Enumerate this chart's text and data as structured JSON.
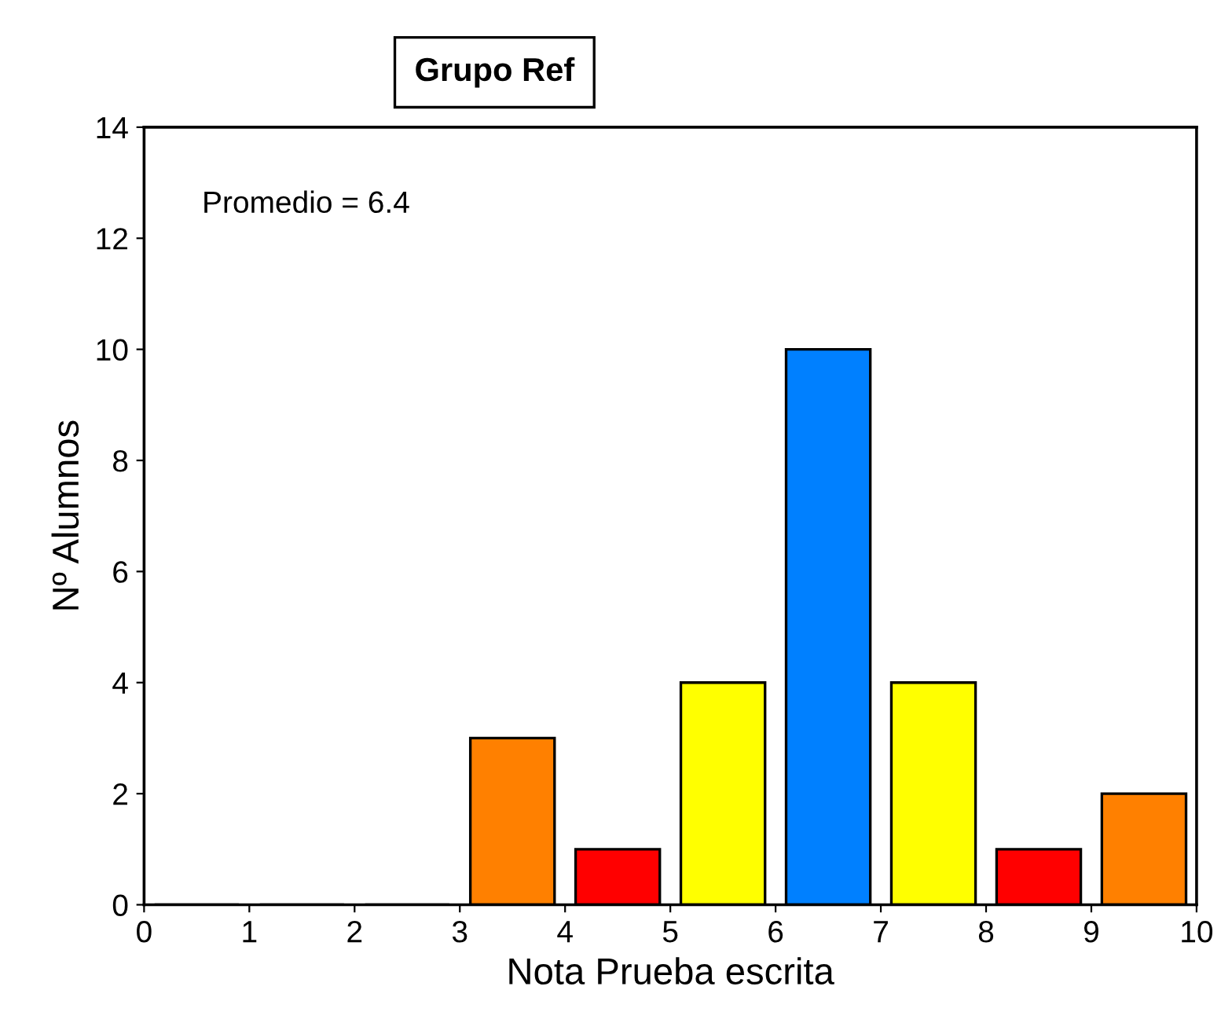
{
  "chart_data": {
    "type": "histogram",
    "title": "Grupo Ref",
    "xlabel": "Nota Prueba escrita",
    "ylabel": "Nº Alumnos",
    "bins": [
      0,
      1,
      2,
      3,
      4,
      5,
      6,
      7,
      8,
      9,
      10
    ],
    "values": [
      0,
      0,
      0,
      3,
      1,
      4,
      10,
      4,
      1,
      2
    ],
    "colors": [
      "#ff8000",
      "#ff8000",
      "#ff8000",
      "#ff8000",
      "#ff0000",
      "#ffff00",
      "#0080ff",
      "#ffff00",
      "#ff0000",
      "#ff8000"
    ],
    "xlim": [
      0,
      10
    ],
    "xticks": [
      0,
      1,
      2,
      3,
      4,
      5,
      6,
      7,
      8,
      9,
      10
    ],
    "ylim": [
      0,
      14
    ],
    "yticks": [
      0,
      2,
      4,
      6,
      8,
      10,
      12,
      14
    ],
    "annotations": [
      "Promedio = 6.4"
    ],
    "grid": false,
    "legend": false
  }
}
